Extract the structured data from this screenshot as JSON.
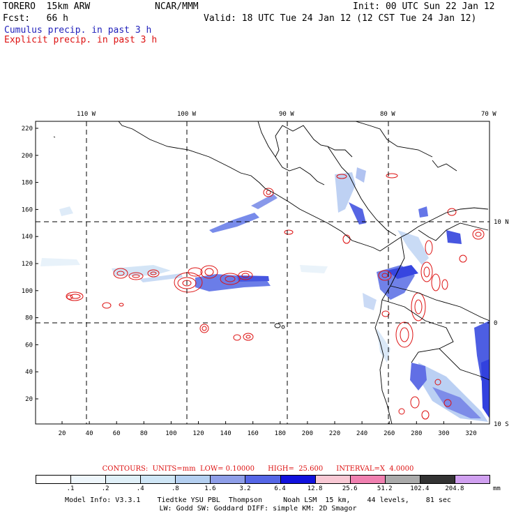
{
  "header": {
    "model": "TORERO  15km ARW",
    "center": "NCAR/MMM",
    "init": "Init: 00 UTC Sun 22 Jan 12",
    "fcst": "Fcst:   66 h",
    "valid": "Valid: 18 UTC Tue 24 Jan 12 (12 CST Tue 24 Jan 12)",
    "field1": "Cumulus precip. in past 3 h",
    "field2": "Explicit precip. in past 3 h",
    "field1_color": "#2222bb",
    "field2_color": "#dd1111"
  },
  "map": {
    "longitude_labels": [
      "110 W",
      "100 W",
      "90 W",
      "80 W",
      "70 W"
    ],
    "latitude_labels": [
      "10 N",
      "0",
      "10 S"
    ],
    "y_ticks": [
      "20",
      "40",
      "60",
      "80",
      "100",
      "120",
      "140",
      "160",
      "180",
      "200",
      "220"
    ],
    "x_ticks": [
      "20",
      "40",
      "60",
      "80",
      "100",
      "120",
      "140",
      "160",
      "180",
      "200",
      "220",
      "240",
      "260",
      "280",
      "300",
      "320"
    ]
  },
  "contour_info": "CONTOURS:  UNITS=mm  LOW= 0.10000      HIGH=  25.600      INTERVAL=X  4.0000",
  "colorbar": {
    "unit": "mm",
    "labels": [
      ".1",
      ".2",
      ".4",
      ".8",
      "1.6",
      "3.2",
      "6.4",
      "12.8",
      "25.6",
      "51.2",
      "102.4",
      "204.8"
    ],
    "colors": [
      "#ffffff",
      "#eef6fb",
      "#e0f0f8",
      "#cfe6f6",
      "#b4cff0",
      "#8e9ee8",
      "#5566e6",
      "#1111dd",
      "#f8c8d4",
      "#f080b0",
      "#aaaaaa",
      "#333333",
      "#d0a0f0"
    ]
  },
  "footer": {
    "line1": "Model Info: V3.3.1    Tiedtke YSU PBL  Thompson     Noah LSM  15 km,    44 levels,    81 sec",
    "line2": "LW: Godd SW: Goddard DIFF: simple KM: 2D Smagor"
  }
}
